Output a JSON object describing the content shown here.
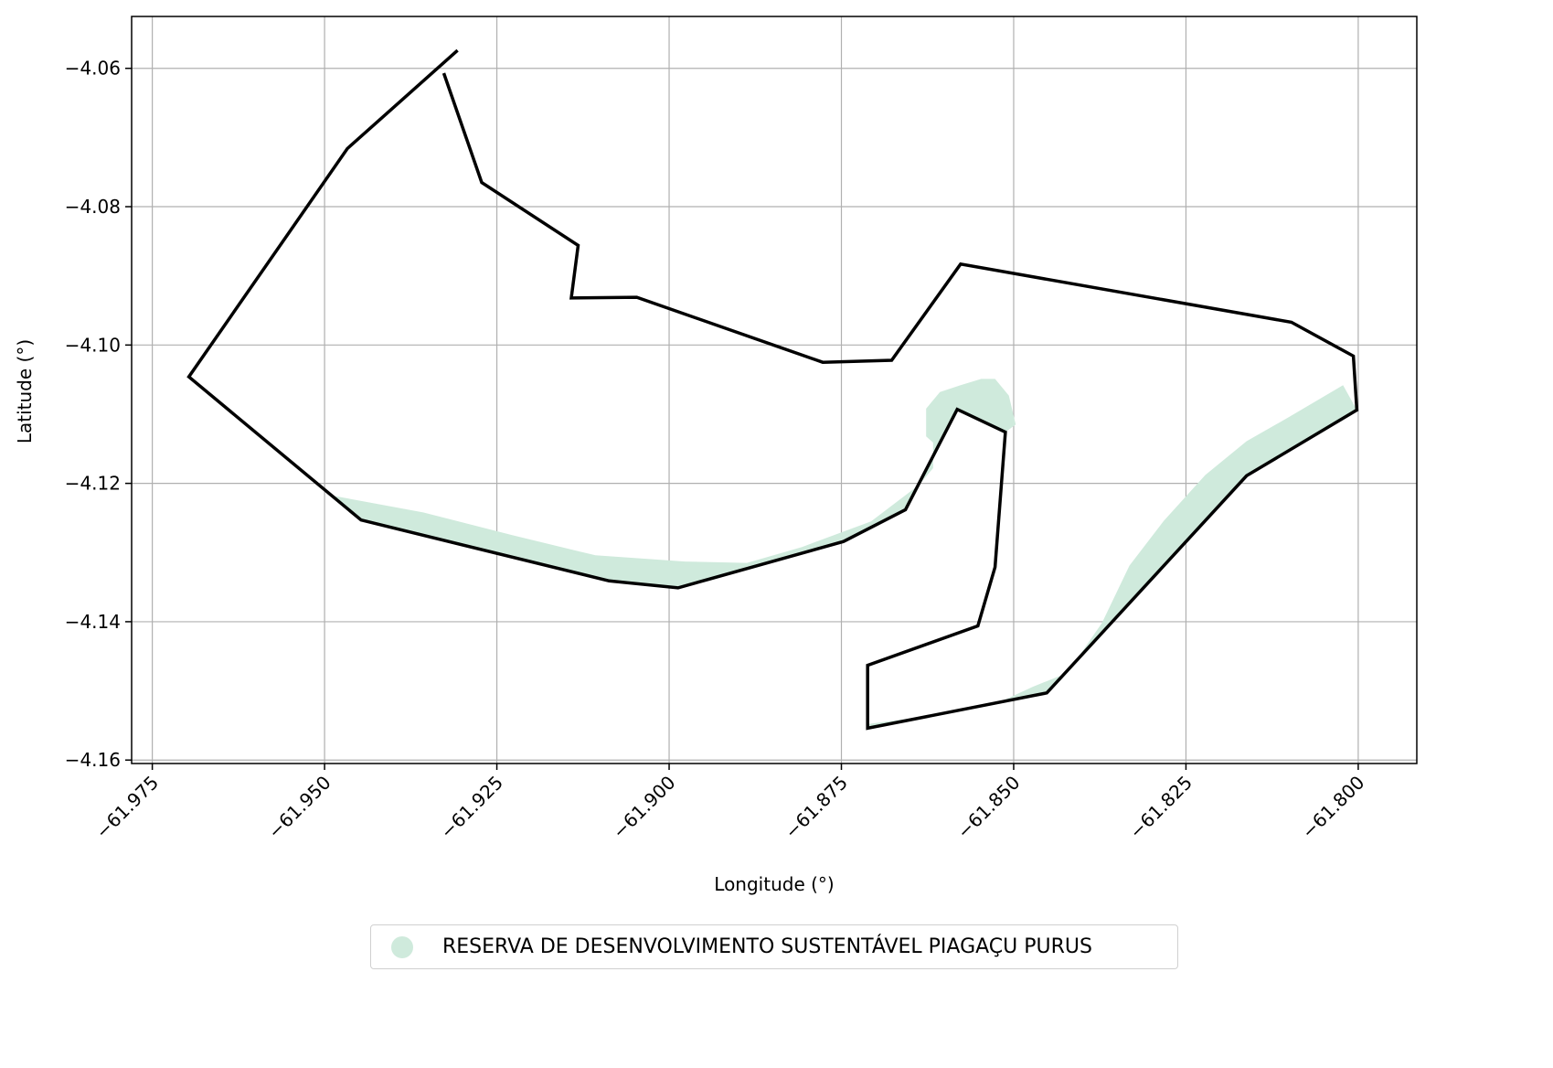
{
  "map": {
    "xlabel": "Longitude (°)",
    "ylabel": "Latitude (°)",
    "xlim": [
      -61.978,
      -61.7915
    ],
    "ylim": [
      -4.1605,
      -4.0525
    ],
    "x_ticks": [
      -61.975,
      -61.95,
      -61.925,
      -61.9,
      -61.875,
      -61.85,
      -61.825,
      -61.8
    ],
    "x_tick_labels": [
      "−61.975",
      "−61.950",
      "−61.925",
      "−61.900",
      "−61.875",
      "−61.850",
      "−61.825",
      "−61.800"
    ],
    "y_ticks": [
      -4.06,
      -4.08,
      -4.1,
      -4.12,
      -4.14,
      -4.16
    ],
    "y_tick_labels": [
      "−4.06",
      "−4.08",
      "−4.10",
      "−4.12",
      "−4.14",
      "−4.16"
    ],
    "grid": true,
    "legend_position": "bottom-center",
    "boundary": {
      "color": "#000000",
      "coords": [
        [
          -61.9307,
          -4.0574
        ],
        [
          -61.9467,
          -4.0716
        ],
        [
          -61.9697,
          -4.1046
        ],
        [
          -61.9447,
          -4.1253
        ],
        [
          -61.9087,
          -4.1341
        ],
        [
          -61.8987,
          -4.1351
        ],
        [
          -61.8747,
          -4.1284
        ],
        [
          -61.8657,
          -4.1238
        ],
        [
          -61.8582,
          -4.1093
        ],
        [
          -61.8512,
          -4.1126
        ],
        [
          -61.8527,
          -4.1321
        ],
        [
          -61.8552,
          -4.1406
        ],
        [
          -61.8712,
          -4.1463
        ],
        [
          -61.8712,
          -4.1554
        ],
        [
          -61.8452,
          -4.1503
        ],
        [
          -61.8162,
          -4.1189
        ],
        [
          -61.8002,
          -4.1094
        ],
        [
          -61.8007,
          -4.1016
        ],
        [
          -61.8097,
          -4.0967
        ],
        [
          -61.8577,
          -4.0883
        ],
        [
          -61.8677,
          -4.1022
        ],
        [
          -61.8777,
          -4.1025
        ],
        [
          -61.9047,
          -4.0931
        ],
        [
          -61.9142,
          -4.0932
        ],
        [
          -61.9132,
          -4.0856
        ],
        [
          -61.9272,
          -4.0765
        ],
        [
          -61.9327,
          -4.0607
        ]
      ]
    },
    "reserve_area": {
      "name": "RESERVA DE DESENVOLVIMENTO SUSTENTÁVEL PIAGAÇU PURUS",
      "color": "#cfeadc",
      "coords": [
        [
          -61.9487,
          -4.1218
        ],
        [
          -61.9357,
          -4.1242
        ],
        [
          -61.9227,
          -4.1275
        ],
        [
          -61.9107,
          -4.1304
        ],
        [
          -61.8977,
          -4.1313
        ],
        [
          -61.8887,
          -4.1315
        ],
        [
          -61.8807,
          -4.1292
        ],
        [
          -61.8707,
          -4.1255
        ],
        [
          -61.8637,
          -4.1202
        ],
        [
          -61.8617,
          -4.1178
        ],
        [
          -61.8617,
          -4.1141
        ],
        [
          -61.8627,
          -4.1132
        ],
        [
          -61.8627,
          -4.1092
        ],
        [
          -61.8607,
          -4.1068
        ],
        [
          -61.8577,
          -4.1058
        ],
        [
          -61.8547,
          -4.1049
        ],
        [
          -61.8527,
          -4.1049
        ],
        [
          -61.8507,
          -4.1073
        ],
        [
          -61.8497,
          -4.1115
        ],
        [
          -61.8512,
          -4.1126
        ],
        [
          -61.8582,
          -4.1093
        ],
        [
          -61.8657,
          -4.1238
        ],
        [
          -61.8747,
          -4.1284
        ],
        [
          -61.8987,
          -4.1351
        ],
        [
          -61.9087,
          -4.1341
        ],
        [
          -61.9447,
          -4.1253
        ]
      ],
      "coords_east": [
        [
          -61.8022,
          -4.1058
        ],
        [
          -61.8102,
          -4.1105
        ],
        [
          -61.8162,
          -4.1139
        ],
        [
          -61.8222,
          -4.1188
        ],
        [
          -61.8282,
          -4.1254
        ],
        [
          -61.8332,
          -4.1319
        ],
        [
          -61.8372,
          -4.1402
        ],
        [
          -61.8422,
          -4.1474
        ],
        [
          -61.8472,
          -4.1494
        ],
        [
          -61.8522,
          -4.1517
        ],
        [
          -61.8592,
          -4.1532
        ],
        [
          -61.8712,
          -4.1548
        ],
        [
          -61.8712,
          -4.1554
        ],
        [
          -61.8452,
          -4.1503
        ],
        [
          -61.8162,
          -4.1189
        ],
        [
          -61.8002,
          -4.1094
        ]
      ]
    }
  },
  "legend": {
    "label": "RESERVA DE DESENVOLVIMENTO SUSTENTÁVEL PIAGAÇU PURUS"
  }
}
